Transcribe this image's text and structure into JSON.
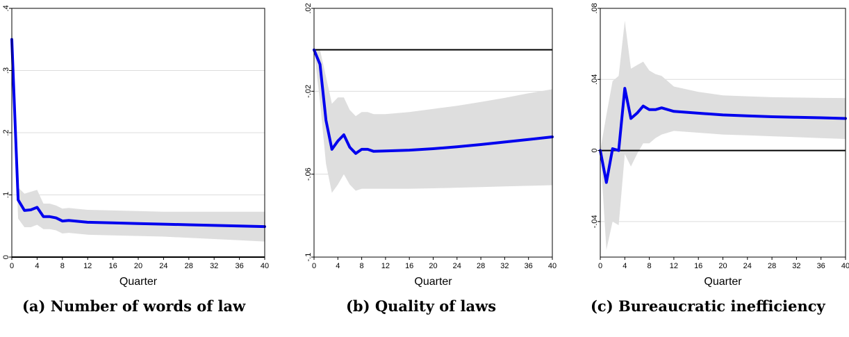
{
  "chart_data": [
    {
      "type": "line",
      "caption": "(a)  Number of words of law",
      "xlabel": "Quarter",
      "ylabel": "",
      "xlim": [
        0,
        40
      ],
      "ylim": [
        0,
        0.4
      ],
      "xticks": [
        0,
        4,
        8,
        12,
        16,
        20,
        24,
        28,
        32,
        36,
        40
      ],
      "yticks": [
        0,
        0.1,
        0.2,
        0.3,
        0.4
      ],
      "yticklabels": [
        "0",
        ".1",
        ".2",
        ".3",
        ".4"
      ],
      "zero_line": 0,
      "x": [
        0,
        1,
        2,
        3,
        4,
        5,
        6,
        7,
        8,
        9,
        10,
        12,
        16,
        20,
        24,
        28,
        32,
        36,
        40
      ],
      "series": [
        {
          "y": [
            0.35,
            0.092,
            0.075,
            0.076,
            0.08,
            0.065,
            0.065,
            0.063,
            0.058,
            0.059,
            0.058,
            0.056,
            0.055,
            0.054,
            0.053,
            0.052,
            0.051,
            0.05,
            0.049
          ],
          "lower": [
            0.322,
            0.062,
            0.048,
            0.048,
            0.052,
            0.045,
            0.045,
            0.043,
            0.038,
            0.039,
            0.038,
            0.036,
            0.035,
            0.034,
            0.033,
            0.031,
            0.029,
            0.027,
            0.025
          ],
          "upper": [
            0.378,
            0.112,
            0.102,
            0.105,
            0.108,
            0.086,
            0.086,
            0.083,
            0.078,
            0.079,
            0.078,
            0.076,
            0.075,
            0.074,
            0.073,
            0.073,
            0.073,
            0.073,
            0.073
          ]
        }
      ]
    },
    {
      "type": "line",
      "caption": "(b)  Quality of laws",
      "xlabel": "Quarter",
      "ylabel": "",
      "xlim": [
        0,
        40
      ],
      "ylim": [
        -0.1,
        0.02
      ],
      "xticks": [
        0,
        4,
        8,
        12,
        16,
        20,
        24,
        28,
        32,
        36,
        40
      ],
      "yticks": [
        -0.1,
        -0.06,
        -0.02,
        0.02
      ],
      "yticklabels": [
        "-.1",
        "-.06",
        "-.02",
        ".02"
      ],
      "zero_line": 0,
      "x": [
        0,
        1,
        2,
        3,
        4,
        5,
        6,
        7,
        8,
        9,
        10,
        12,
        16,
        20,
        24,
        28,
        32,
        36,
        40
      ],
      "series": [
        {
          "y": [
            0.0,
            -0.007,
            -0.034,
            -0.048,
            -0.044,
            -0.041,
            -0.047,
            -0.05,
            -0.048,
            -0.048,
            -0.049,
            -0.0488,
            -0.0484,
            -0.0477,
            -0.0468,
            -0.0457,
            -0.0445,
            -0.0433,
            -0.042
          ],
          "lower": [
            0.0,
            -0.025,
            -0.055,
            -0.069,
            -0.065,
            -0.06,
            -0.065,
            -0.068,
            -0.067,
            -0.067,
            -0.067,
            -0.067,
            -0.067,
            -0.0668,
            -0.0665,
            -0.0662,
            -0.0659,
            -0.0656,
            -0.0653
          ],
          "upper": [
            0.0,
            0.0,
            -0.013,
            -0.026,
            -0.023,
            -0.023,
            -0.029,
            -0.032,
            -0.03,
            -0.03,
            -0.031,
            -0.031,
            -0.03,
            -0.0285,
            -0.027,
            -0.0252,
            -0.0232,
            -0.021,
            -0.019
          ]
        }
      ]
    },
    {
      "type": "line",
      "caption": "(c)  Bureaucratic inefficiency",
      "xlabel": "Quarter",
      "ylabel": "",
      "xlim": [
        0,
        40
      ],
      "ylim": [
        -0.06,
        0.08
      ],
      "xticks": [
        0,
        4,
        8,
        12,
        16,
        20,
        24,
        28,
        32,
        36,
        40
      ],
      "yticks": [
        -0.04,
        0,
        0.04,
        0.08
      ],
      "yticklabels": [
        "-.04",
        "0",
        ".04",
        ".08"
      ],
      "zero_line": 0,
      "x": [
        0,
        1,
        2,
        3,
        4,
        5,
        6,
        7,
        8,
        9,
        10,
        12,
        16,
        20,
        24,
        28,
        32,
        36,
        40
      ],
      "series": [
        {
          "y": [
            0.0,
            -0.018,
            0.001,
            0.0,
            0.035,
            0.018,
            0.021,
            0.025,
            0.023,
            0.023,
            0.024,
            0.022,
            0.021,
            0.02,
            0.0195,
            0.019,
            0.0187,
            0.0184,
            0.018
          ],
          "lower": [
            0.0,
            -0.056,
            -0.04,
            -0.042,
            -0.002,
            -0.009,
            -0.002,
            0.004,
            0.004,
            0.007,
            0.009,
            0.011,
            0.01,
            0.009,
            0.0085,
            0.008,
            0.0075,
            0.007,
            0.0065
          ],
          "upper": [
            0.0,
            0.02,
            0.039,
            0.042,
            0.073,
            0.046,
            0.048,
            0.05,
            0.045,
            0.043,
            0.042,
            0.036,
            0.033,
            0.031,
            0.0305,
            0.03,
            0.0298,
            0.0296,
            0.0295
          ]
        }
      ]
    }
  ]
}
